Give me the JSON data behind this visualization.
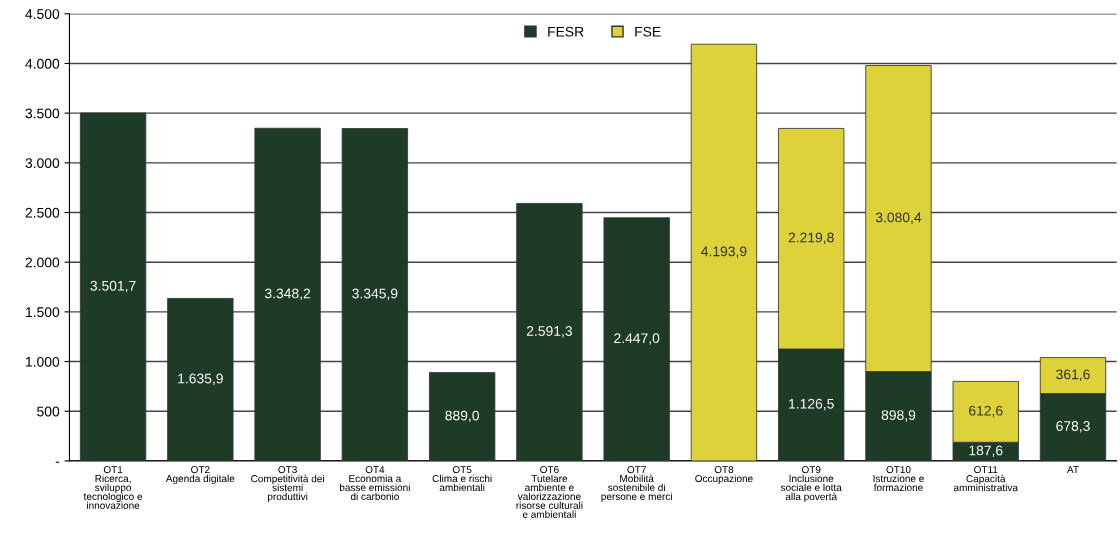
{
  "chart_data": {
    "type": "bar",
    "stacked": true,
    "categories": [
      "OT1\nRicerca,\nsviluppo\ntecnologico e\ninnovazione",
      "OT2\nAgenda digitale",
      "OT3\nCompetitività dei\nsistemi\nproduttivi",
      "OT4\nEconomia a\nbasse emissioni\ndi carbonio",
      "OT5\nClima e rischi\nambientali",
      "OT6\nTutelare\nambiente e\nvalorizzazione\nrisorse culturali\ne ambientali",
      "OT7\nMobilità\nsostenibile di\npersone e merci",
      "OT8\nOccupazione",
      "OT9\nInclusione\nsociale e lotta\nalla povertà",
      "OT10\nIstruzione e\nformazione",
      "OT11\nCapacità\namministrativa",
      "AT"
    ],
    "series": [
      {
        "name": "FESR",
        "color": "#1e3b28",
        "values": [
          3501.7,
          1635.9,
          3348.2,
          3345.9,
          889.0,
          2591.3,
          2447.0,
          null,
          1126.5,
          898.9,
          187.6,
          678.3
        ],
        "value_labels": [
          "3.501,7",
          "1.635,9",
          "3.348,2",
          "3.345,9",
          "889,0",
          "2.591,3",
          "2.447,0",
          null,
          "1.126,5",
          "898,9",
          "187,6",
          "678,3"
        ]
      },
      {
        "name": "FSE",
        "color": "#ddd23a",
        "values": [
          null,
          null,
          null,
          null,
          null,
          null,
          null,
          4193.9,
          2219.8,
          3080.4,
          612.6,
          361.6
        ],
        "value_labels": [
          null,
          null,
          null,
          null,
          null,
          null,
          null,
          "4.193,9",
          "2.219,8",
          "3.080,4",
          "612,6",
          "361,6"
        ]
      }
    ],
    "ylim": [
      0,
      4500
    ],
    "yticks": [
      {
        "value": 0,
        "label": "-"
      },
      {
        "value": 500,
        "label": "500"
      },
      {
        "value": 1000,
        "label": "1.000"
      },
      {
        "value": 1500,
        "label": "1.500"
      },
      {
        "value": 2000,
        "label": "2.000"
      },
      {
        "value": 2500,
        "label": "2.500"
      },
      {
        "value": 3000,
        "label": "3.000"
      },
      {
        "value": 3500,
        "label": "3.500"
      },
      {
        "value": 4000,
        "label": "4.000"
      },
      {
        "value": 4500,
        "label": "4.500"
      }
    ],
    "grid": "y",
    "legend": "top"
  }
}
